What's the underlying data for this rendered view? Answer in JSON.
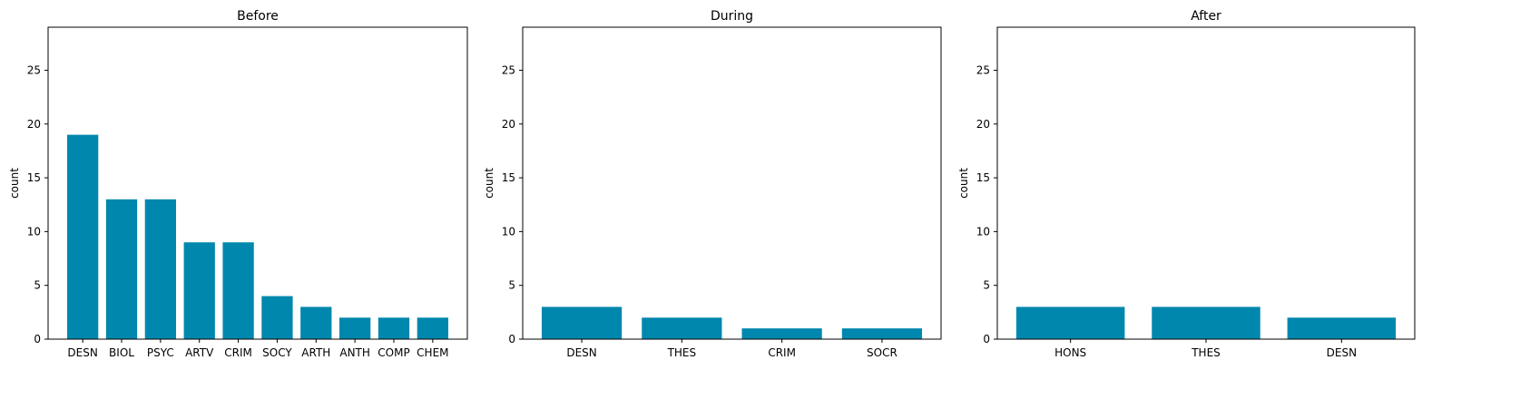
{
  "colors": {
    "bar": "#0087ad",
    "axis": "#000000",
    "background": "#ffffff"
  },
  "chart_data": [
    {
      "type": "bar",
      "title": "Before",
      "xlabel": "",
      "ylabel": "count",
      "ylim": [
        0,
        29
      ],
      "yticks": [
        0,
        5,
        10,
        15,
        20,
        25
      ],
      "categories": [
        "DESN",
        "BIOL",
        "PSYC",
        "ARTV",
        "CRIM",
        "SOCY",
        "ARTH",
        "ANTH",
        "COMP",
        "CHEM"
      ],
      "values": [
        19,
        13,
        13,
        9,
        9,
        4,
        3,
        2,
        2,
        2
      ],
      "grid": false
    },
    {
      "type": "bar",
      "title": "During",
      "xlabel": "",
      "ylabel": "count",
      "ylim": [
        0,
        29
      ],
      "yticks": [
        0,
        5,
        10,
        15,
        20,
        25
      ],
      "categories": [
        "DESN",
        "THES",
        "CRIM",
        "SOCR"
      ],
      "values": [
        3,
        2,
        1,
        1
      ],
      "grid": false
    },
    {
      "type": "bar",
      "title": "After",
      "xlabel": "",
      "ylabel": "count",
      "ylim": [
        0,
        29
      ],
      "yticks": [
        0,
        5,
        10,
        15,
        20,
        25
      ],
      "categories": [
        "HONS",
        "THES",
        "DESN"
      ],
      "values": [
        3,
        3,
        2
      ],
      "grid": false
    }
  ]
}
